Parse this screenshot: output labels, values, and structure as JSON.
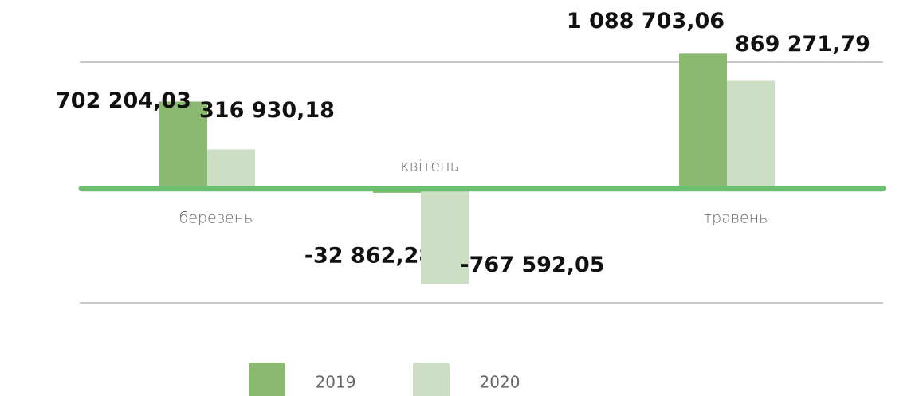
{
  "chart_data": {
    "type": "bar",
    "categories": [
      "березень",
      "квітень",
      "травень"
    ],
    "series": [
      {
        "name": "2019",
        "color": "#8ab96f",
        "values": [
          702204.03,
          -32862.28,
          1088703.06
        ],
        "value_labels": [
          "702 204,03",
          "-32 862,28",
          "1 088 703,06"
        ]
      },
      {
        "name": "2020",
        "color": "#ccdec3",
        "values": [
          316930.18,
          -767592.05,
          869271.79
        ],
        "value_labels": [
          "316 930,18",
          "-767 592,05",
          "869 271,79"
        ]
      }
    ],
    "ylim": [
      -920000,
      1020000
    ],
    "zero_line_color": "#6dbf72",
    "legend": "bottom"
  }
}
